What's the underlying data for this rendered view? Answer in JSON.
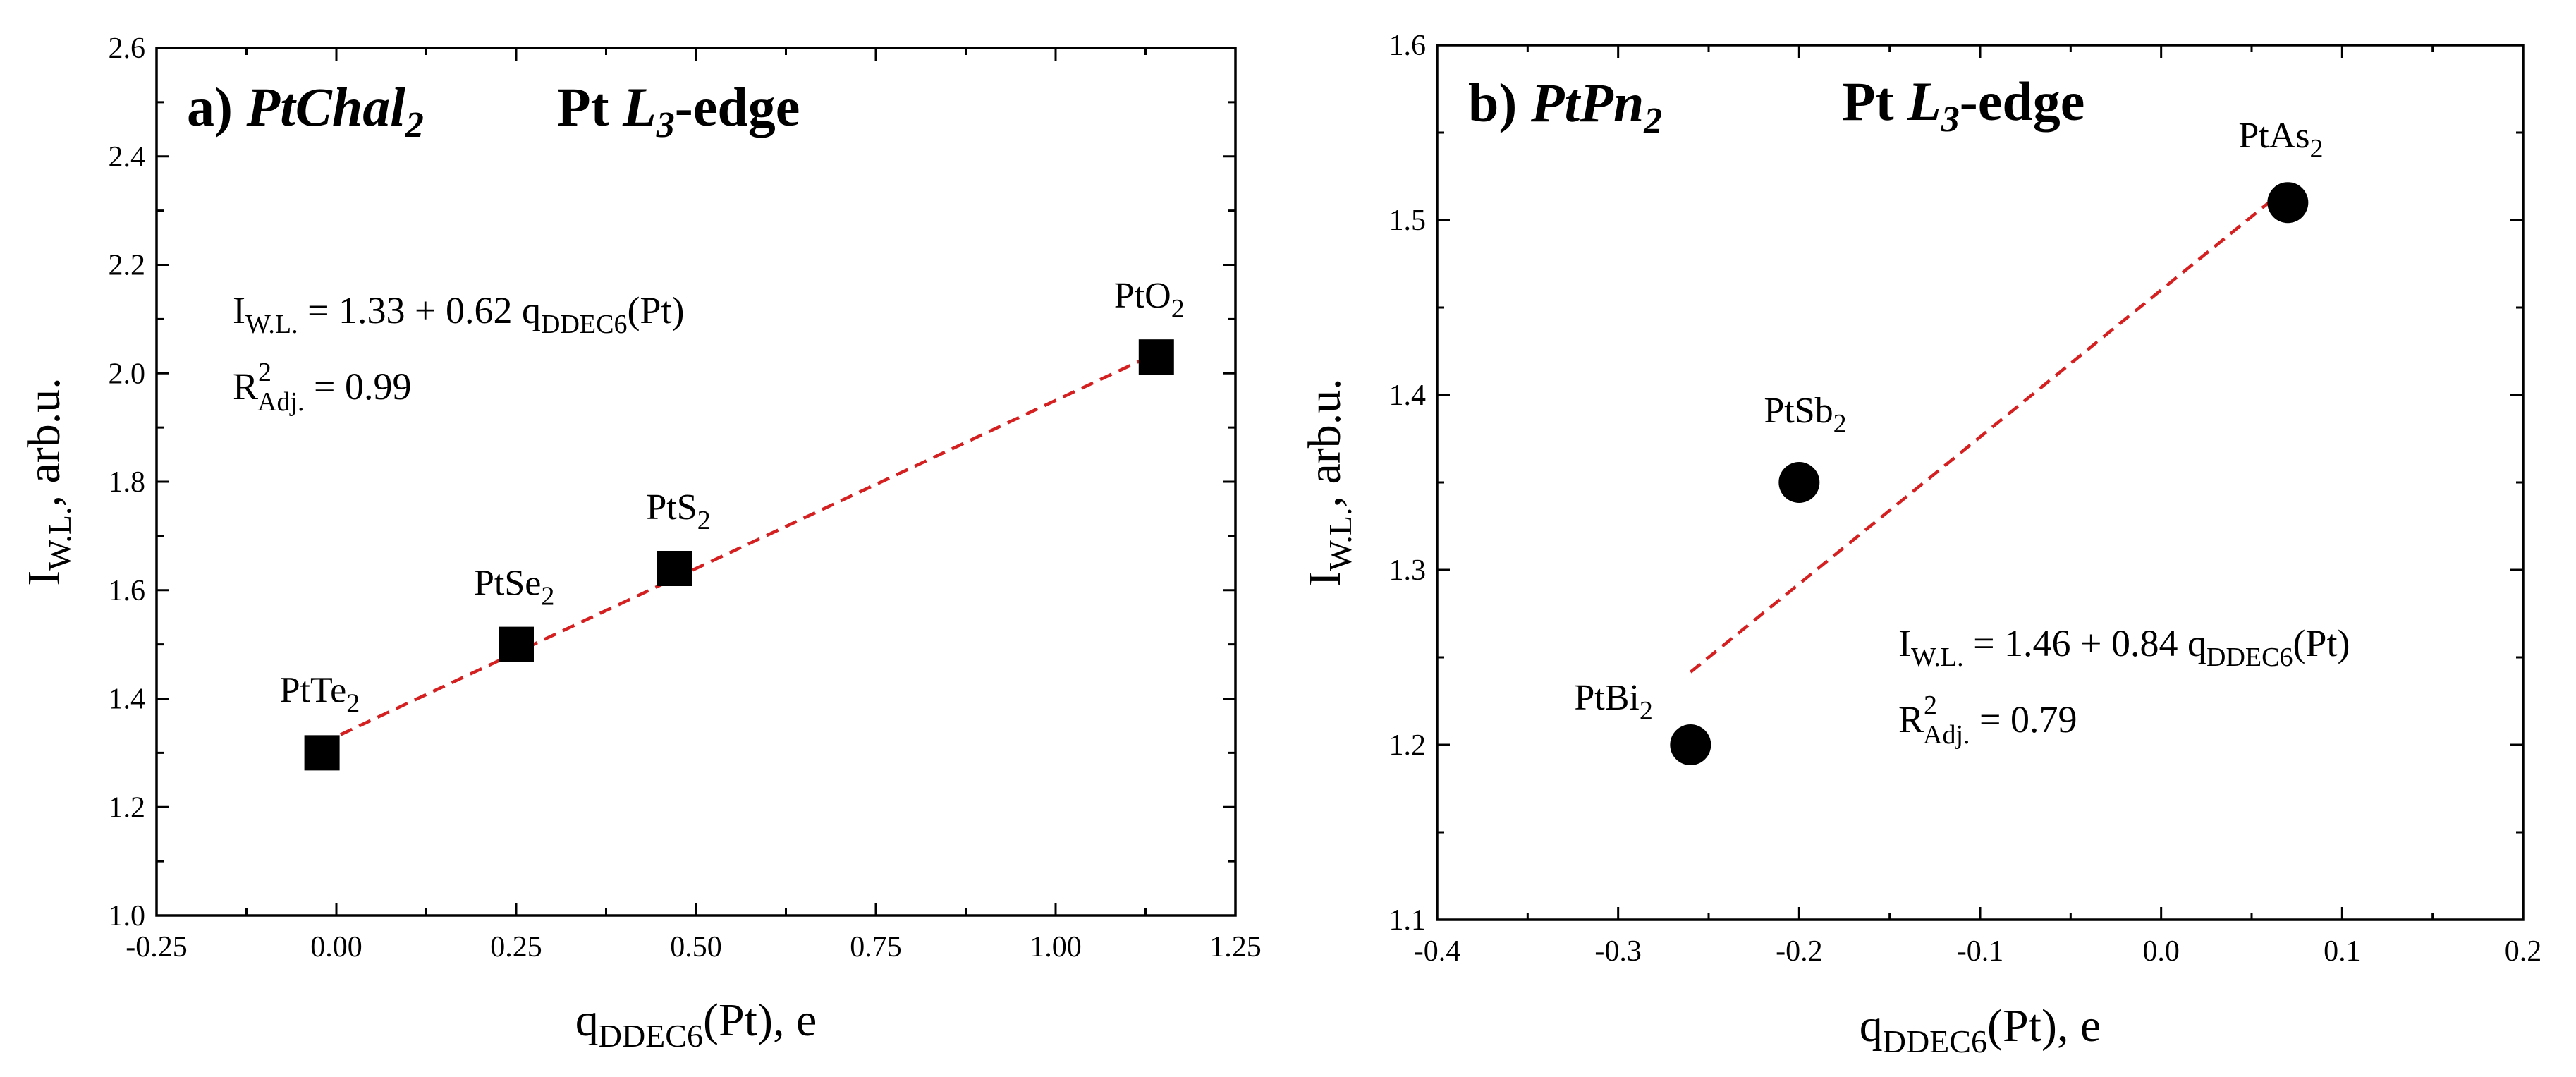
{
  "chart_data": [
    {
      "type": "scatter",
      "panel_label": "a)",
      "panel_compound": "PtChal",
      "panel_compound_sub": "2",
      "title_prefix": "Pt ",
      "title_edge": "L",
      "title_edge_sub": "3",
      "title_suffix": "-edge",
      "xlabel_main": "q",
      "xlabel_sub": "DDEC6",
      "xlabel_tail": "(Pt), e",
      "ylabel_main": "I",
      "ylabel_sub": "W.L.",
      "ylabel_tail": ", arb.u.",
      "xlim": [
        -0.25,
        1.25
      ],
      "ylim": [
        1.0,
        2.6
      ],
      "xticks": [
        -0.25,
        0.0,
        0.25,
        0.5,
        0.75,
        1.0,
        1.25
      ],
      "xtick_labels": [
        "-0.25",
        "0.00",
        "0.25",
        "0.50",
        "0.75",
        "1.00",
        "1.25"
      ],
      "yticks": [
        1.0,
        1.2,
        1.4,
        1.6,
        1.8,
        2.0,
        2.2,
        2.4,
        2.6
      ],
      "ytick_labels": [
        "1.0",
        "1.2",
        "1.4",
        "1.6",
        "1.8",
        "2.0",
        "2.2",
        "2.4",
        "2.6"
      ],
      "marker": "square",
      "marker_color": "#000000",
      "fit_color": "#d42020",
      "points": [
        {
          "label": "PtTe",
          "sub": "2",
          "x": -0.02,
          "y": 1.3
        },
        {
          "label": "PtSe",
          "sub": "2",
          "x": 0.25,
          "y": 1.5
        },
        {
          "label": "PtS",
          "sub": "2",
          "x": 0.47,
          "y": 1.64
        },
        {
          "label": "PtO",
          "sub": "2",
          "x": 1.14,
          "y": 2.03
        }
      ],
      "fit": {
        "intercept": 1.33,
        "slope": 0.62,
        "x_range": [
          -0.02,
          1.14
        ]
      },
      "equation": {
        "lhs_main": "I",
        "lhs_sub": "W.L.",
        "rhs_pre": " = 1.33 + 0.62 q",
        "rhs_sub": "DDEC6",
        "rhs_post": "(Pt)",
        "r2_main": "R",
        "r2_sup": "2",
        "r2_sub": "Adj.",
        "r2_value": " = 0.99"
      }
    },
    {
      "type": "scatter",
      "panel_label": "b)",
      "panel_compound": "PtPn",
      "panel_compound_sub": "2",
      "title_prefix": "Pt ",
      "title_edge": "L",
      "title_edge_sub": "3",
      "title_suffix": "-edge",
      "xlabel_main": "q",
      "xlabel_sub": "DDEC6",
      "xlabel_tail": "(Pt), e",
      "ylabel_main": "I",
      "ylabel_sub": "W.L.",
      "ylabel_tail": ", arb.u.",
      "xlim": [
        -0.4,
        0.2
      ],
      "ylim": [
        1.1,
        1.6
      ],
      "xticks": [
        -0.4,
        -0.3,
        -0.2,
        -0.1,
        0.0,
        0.1,
        0.2
      ],
      "xtick_labels": [
        "-0.4",
        "-0.3",
        "-0.2",
        "-0.1",
        "0.0",
        "0.1",
        "0.2"
      ],
      "yticks": [
        1.1,
        1.2,
        1.3,
        1.4,
        1.5,
        1.6
      ],
      "ytick_labels": [
        "1.1",
        "1.2",
        "1.3",
        "1.4",
        "1.5",
        "1.6"
      ],
      "marker": "circle",
      "marker_color": "#000000",
      "fit_color": "#d42020",
      "points": [
        {
          "label": "PtBi",
          "sub": "2",
          "x": -0.26,
          "y": 1.2
        },
        {
          "label": "PtSb",
          "sub": "2",
          "x": -0.2,
          "y": 1.35
        },
        {
          "label": "PtAs",
          "sub": "2",
          "x": 0.07,
          "y": 1.51
        }
      ],
      "fit": {
        "intercept": 1.46,
        "slope": 0.84,
        "x_range": [
          -0.26,
          0.07
        ]
      },
      "equation": {
        "lhs_main": "I",
        "lhs_sub": "W.L.",
        "rhs_pre": " = 1.46 + 0.84 q",
        "rhs_sub": "DDEC6",
        "rhs_post": "(Pt)",
        "r2_main": "R",
        "r2_sup": "2",
        "r2_sub": "Adj.",
        "r2_value": " = 0.79"
      }
    }
  ]
}
